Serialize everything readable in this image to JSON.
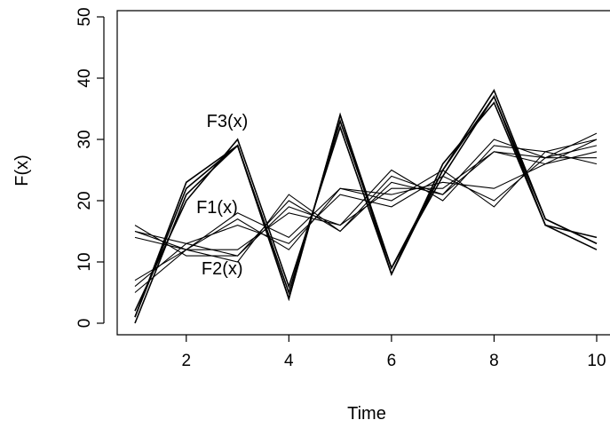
{
  "chart_data": {
    "type": "line",
    "title": "",
    "xlabel": "Time",
    "ylabel": "F(x)",
    "xlim": [
      1,
      10
    ],
    "ylim": [
      0,
      50
    ],
    "x_ticks": [
      2,
      4,
      6,
      8,
      10
    ],
    "y_ticks": [
      0,
      10,
      20,
      30,
      40,
      50
    ],
    "grid": false,
    "x": [
      1,
      2,
      3,
      4,
      5,
      6,
      7,
      8,
      9,
      10
    ],
    "annotations": [
      {
        "text": "F3(x)",
        "x": 2.8,
        "y": 32
      },
      {
        "text": "F1(x)",
        "x": 2.6,
        "y": 18
      },
      {
        "text": "F2(x)",
        "x": 2.7,
        "y": 8
      }
    ],
    "series": [
      {
        "group": "F3",
        "values": [
          1,
          22,
          29,
          4,
          34,
          8,
          25,
          38,
          17,
          13
        ]
      },
      {
        "group": "F3",
        "values": [
          0,
          21,
          29,
          5,
          33,
          9,
          24,
          37,
          16,
          12
        ]
      },
      {
        "group": "F3",
        "values": [
          2,
          20,
          30,
          6,
          32,
          8,
          26,
          36,
          16,
          14
        ]
      },
      {
        "group": "F3",
        "values": [
          1,
          23,
          29,
          4,
          34,
          9,
          25,
          37,
          17,
          13
        ]
      },
      {
        "group": "F1",
        "values": [
          7,
          12,
          17,
          12,
          22,
          20,
          25,
          19,
          28,
          26
        ]
      },
      {
        "group": "F1",
        "values": [
          6,
          13,
          16,
          13,
          21,
          19,
          24,
          20,
          27,
          27
        ]
      },
      {
        "group": "F1",
        "values": [
          5,
          12,
          18,
          14,
          22,
          21,
          23,
          22,
          26,
          28
        ]
      },
      {
        "group": "F2",
        "values": [
          15,
          12,
          10,
          21,
          15,
          24,
          21,
          30,
          27,
          29
        ]
      },
      {
        "group": "F2",
        "values": [
          16,
          11,
          11,
          19,
          16,
          25,
          20,
          29,
          28,
          30
        ]
      },
      {
        "group": "F2",
        "values": [
          15,
          13,
          11,
          20,
          15,
          23,
          21,
          28,
          27,
          31
        ]
      },
      {
        "group": "F2",
        "values": [
          14,
          12,
          12,
          18,
          16,
          22,
          22,
          28,
          26,
          30
        ]
      }
    ]
  }
}
